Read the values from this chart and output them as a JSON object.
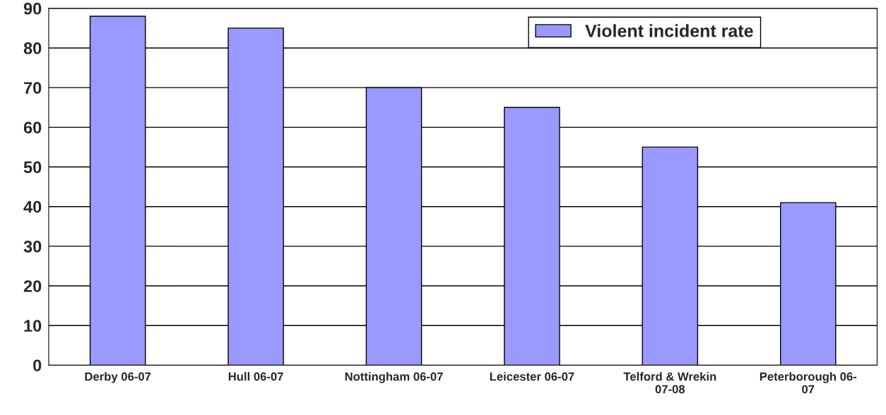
{
  "chart_data": {
    "type": "bar",
    "categories": [
      "Derby 06-07",
      "Hull 06-07",
      "Nottingham 06-07",
      "Leicester 06-07",
      "Telford & Wrekin\n07-08",
      "Peterborough 06-\n07"
    ],
    "series": [
      {
        "name": "Violent incident rate",
        "color": "#9999ff",
        "values": [
          88,
          85,
          70,
          65,
          55,
          41
        ]
      }
    ],
    "ylim": [
      0,
      90
    ],
    "yticks": [
      0,
      10,
      20,
      30,
      40,
      50,
      60,
      70,
      80,
      90
    ],
    "grid": "y",
    "legend": "top right"
  }
}
